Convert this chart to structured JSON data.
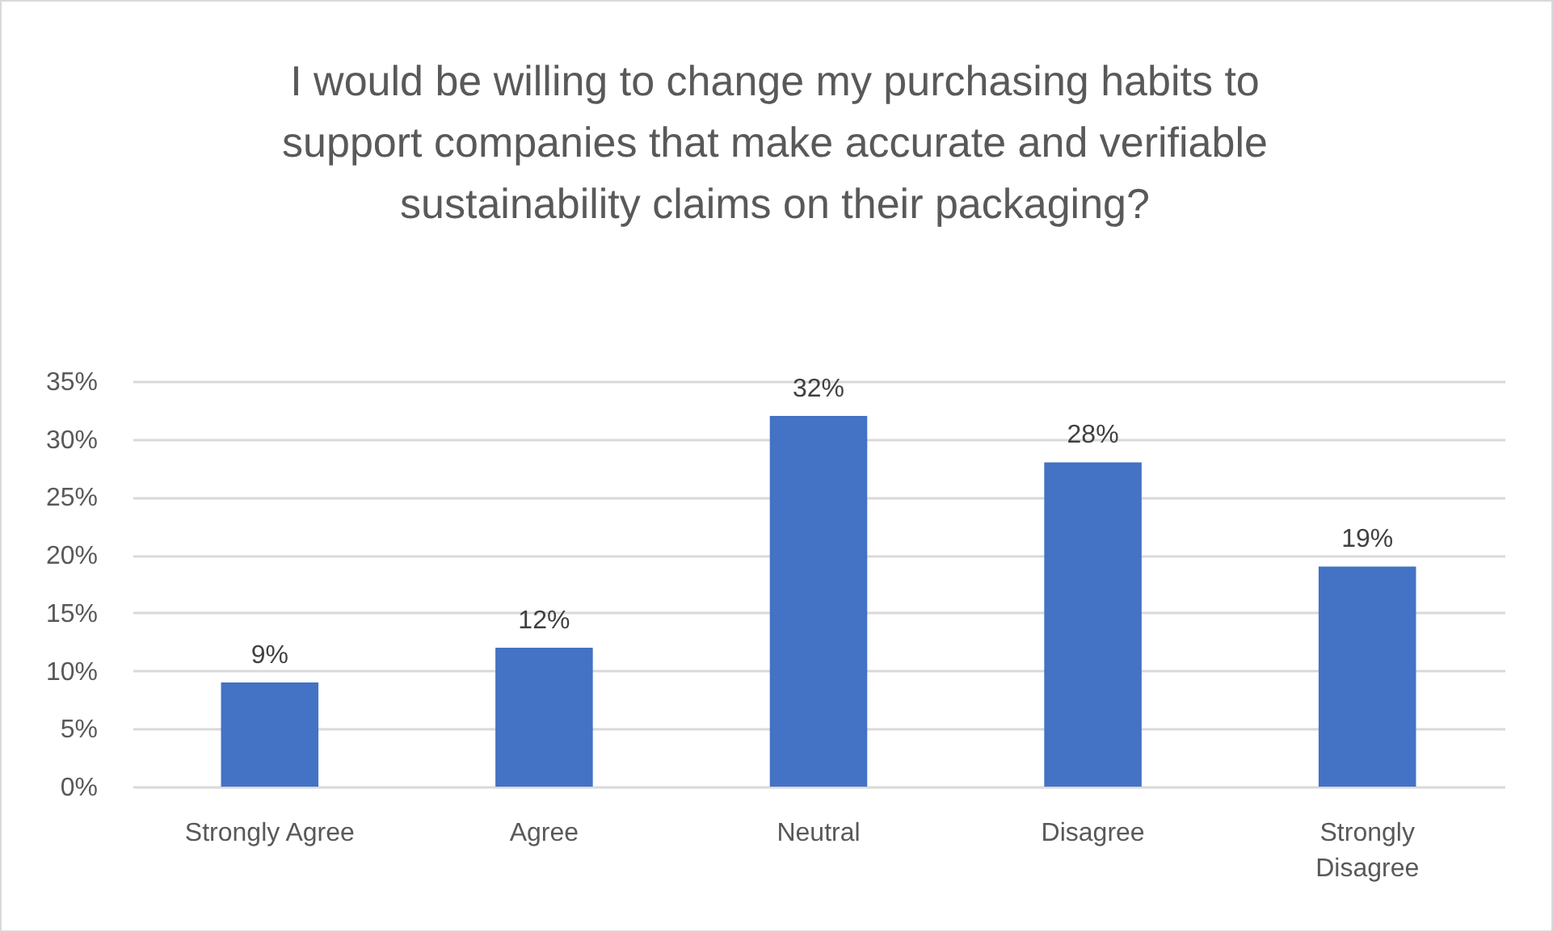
{
  "chart_data": {
    "type": "bar",
    "title": "I would be willing to change my purchasing habits to support companies that make accurate and verifiable sustainability claims on their packaging?",
    "categories": [
      "Strongly Agree",
      "Agree",
      "Neutral",
      "Disagree",
      "Strongly Disagree"
    ],
    "values": [
      9,
      12,
      32,
      28,
      19
    ],
    "value_labels": [
      "9%",
      "12%",
      "32%",
      "28%",
      "19%"
    ],
    "color": "#4472c4",
    "ylim": [
      0,
      35
    ],
    "yticks": [
      {
        "value": 0,
        "label": "0%"
      },
      {
        "value": 5,
        "label": "5%"
      },
      {
        "value": 10,
        "label": "10%"
      },
      {
        "value": 15,
        "label": "15%"
      },
      {
        "value": 20,
        "label": "20%"
      },
      {
        "value": 25,
        "label": "25%"
      },
      {
        "value": 30,
        "label": "30%"
      },
      {
        "value": 35,
        "label": "35%"
      }
    ],
    "grid": "y"
  }
}
